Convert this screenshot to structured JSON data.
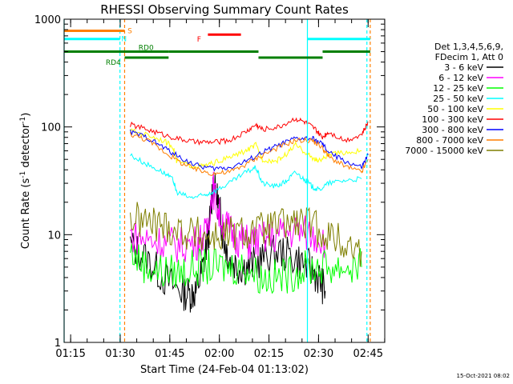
{
  "chart_data": {
    "type": "line",
    "title": "RHESSI Observing Summary Count Rates",
    "xlabel": "Start Time (24-Feb-04 01:13:02)",
    "ylabel_parts": [
      "Count Rate (s",
      "-1",
      " detector",
      "-1",
      ")"
    ],
    "ylabel": "Count Rate (s-1 detector-1)",
    "y_scale": "log",
    "ylim": [
      1,
      1000
    ],
    "y_ticks": [
      1,
      10,
      100,
      1000
    ],
    "y_tick_labels": [
      "1",
      "10",
      "100",
      "1000"
    ],
    "x_unit": "minutes after 01:13:02",
    "xlim": [
      0,
      97
    ],
    "x_ticks": [
      1.97,
      16.97,
      31.97,
      46.97,
      61.97,
      76.97,
      91.97
    ],
    "x_tick_labels": [
      "01:15",
      "01:30",
      "01:45",
      "02:00",
      "02:15",
      "02:30",
      "02:45"
    ],
    "timestamp": "15-Oct-2021 08:02",
    "legend_header": [
      "Det 1,3,4,5,6,9,",
      "FDecim 1, Att 0"
    ],
    "legend_placement": "right",
    "series": [
      {
        "name": "3 - 6 keV",
        "color": "#000000",
        "x": [
          20,
          25,
          30,
          35,
          38,
          40,
          42,
          44,
          45,
          47,
          48,
          50,
          53,
          56,
          60,
          65,
          70,
          74,
          77,
          79
        ],
        "y": [
          8,
          6,
          4,
          3,
          2.8,
          3,
          5,
          12,
          30,
          18,
          10,
          6,
          5,
          5,
          6,
          7,
          6,
          5,
          4,
          3
        ]
      },
      {
        "name": "6 - 12 keV",
        "color": "#ff00ff",
        "x": [
          20,
          25,
          30,
          35,
          40,
          43,
          45,
          47,
          50,
          53,
          56,
          60,
          65,
          70,
          75,
          79
        ],
        "y": [
          10,
          9,
          8.5,
          8,
          8.5,
          10,
          28,
          15,
          11,
          9,
          8.5,
          9,
          10,
          11,
          10,
          9
        ]
      },
      {
        "name": "12 - 25 keV",
        "color": "#00ff00",
        "x": [
          20,
          25,
          30,
          35,
          40,
          45,
          50,
          55,
          60,
          65,
          70,
          75,
          80,
          85,
          90
        ],
        "y": [
          7,
          5,
          4.5,
          4.5,
          5,
          5,
          5,
          5,
          4,
          4,
          4.5,
          5,
          5,
          5,
          5
        ]
      },
      {
        "name": "25 - 50 keV",
        "color": "#00ffff",
        "x": [
          20,
          25,
          30,
          33,
          34,
          38,
          42,
          45,
          50,
          55,
          58,
          60,
          64,
          67,
          70,
          73,
          75,
          77,
          80,
          85,
          90
        ],
        "y": [
          55,
          45,
          38,
          32,
          25,
          22,
          23,
          25,
          30,
          38,
          42,
          30,
          28,
          31,
          38,
          32,
          28,
          26,
          30,
          32,
          33
        ]
      },
      {
        "name": "50 - 100 keV",
        "color": "#ffff00",
        "x": [
          20,
          25,
          30,
          33,
          34,
          38,
          42,
          45,
          50,
          55,
          58,
          60,
          64,
          67,
          70,
          73,
          75,
          77,
          80,
          85,
          90
        ],
        "y": [
          92,
          85,
          75,
          65,
          48,
          44,
          43,
          46,
          52,
          60,
          68,
          50,
          48,
          55,
          68,
          58,
          52,
          48,
          55,
          58,
          60
        ]
      },
      {
        "name": "100 - 300 keV",
        "color": "#ff0000",
        "x": [
          20,
          25,
          30,
          35,
          40,
          45,
          50,
          55,
          58,
          60,
          65,
          70,
          73,
          76,
          78,
          80,
          85,
          90,
          92
        ],
        "y": [
          105,
          95,
          85,
          77,
          72,
          72,
          75,
          90,
          105,
          95,
          100,
          120,
          110,
          95,
          80,
          90,
          75,
          85,
          110
        ]
      },
      {
        "name": "300 - 800 keV",
        "color": "#0000ff",
        "x": [
          20,
          25,
          30,
          35,
          40,
          45,
          50,
          55,
          60,
          65,
          70,
          75,
          78,
          80,
          85,
          90,
          92
        ],
        "y": [
          90,
          80,
          65,
          52,
          44,
          41,
          42,
          48,
          58,
          68,
          78,
          78,
          70,
          58,
          48,
          42,
          55
        ]
      },
      {
        "name": "800 - 7000 keV",
        "color": "#ff7f00",
        "x": [
          20,
          25,
          30,
          35,
          40,
          45,
          50,
          55,
          60,
          65,
          70,
          75,
          78,
          80,
          85,
          90,
          92
        ],
        "y": [
          86,
          76,
          60,
          47,
          40,
          37,
          38,
          45,
          55,
          65,
          75,
          75,
          65,
          53,
          43,
          38,
          50
        ]
      },
      {
        "name": "7000 - 15000 keV",
        "color": "#7f7f00",
        "x": [
          20,
          25,
          30,
          35,
          40,
          45,
          50,
          55,
          60,
          65,
          70,
          75,
          80,
          85,
          90
        ],
        "y": [
          14,
          13,
          12,
          11,
          10,
          9.5,
          10,
          10.5,
          11,
          12,
          13,
          12,
          10,
          8,
          7
        ]
      }
    ],
    "flag_lines": [
      {
        "label": "S",
        "color": "#ff7f00",
        "x": [
          0,
          18.3
        ],
        "y": 780,
        "label_x": 19.2,
        "label_side": "right"
      },
      {
        "label": "N",
        "color": "#00ffff",
        "x": [
          0,
          16.9
        ],
        "y": 655,
        "label_x": 17.3,
        "label_side": "right"
      },
      {
        "label": "RD0",
        "color": "#007f00",
        "x": [
          0,
          31.6
        ],
        "y": 500,
        "label_x": 24.8,
        "label_side": "above"
      },
      {
        "label": "RD4",
        "color": "#007f00",
        "x": [
          18.3,
          31.6
        ],
        "y": 440,
        "label_x": 17.4,
        "label_side": "left"
      },
      {
        "label": "",
        "color": "#007f00",
        "x": [
          31.6,
          58.8
        ],
        "y": 500
      },
      {
        "label": "",
        "color": "#007f00",
        "x": [
          58.8,
          78.2
        ],
        "y": 440
      },
      {
        "label": "",
        "color": "#007f00",
        "x": [
          78.2,
          92.6
        ],
        "y": 500
      },
      {
        "label": "",
        "color": "#00ffff",
        "x": [
          73.6,
          92.6
        ],
        "y": 655
      },
      {
        "label": "F",
        "color": "#ff0000",
        "x": [
          43.5,
          53.5
        ],
        "y": 720,
        "label_x": 41.7,
        "label_side": "left"
      }
    ],
    "vertical_lines": [
      {
        "x": 0,
        "color": "#00ffff",
        "style": "solid"
      },
      {
        "x": 16.9,
        "color": "#00ffff",
        "style": "dashed"
      },
      {
        "x": 18.3,
        "color": "#ff7f00",
        "style": "dashed"
      },
      {
        "x": 73.6,
        "color": "#00ffff",
        "style": "solid"
      },
      {
        "x": 91.6,
        "color": "#00ffff",
        "style": "dashed"
      },
      {
        "x": 92.6,
        "color": "#ff7f00",
        "style": "dashed"
      }
    ]
  }
}
